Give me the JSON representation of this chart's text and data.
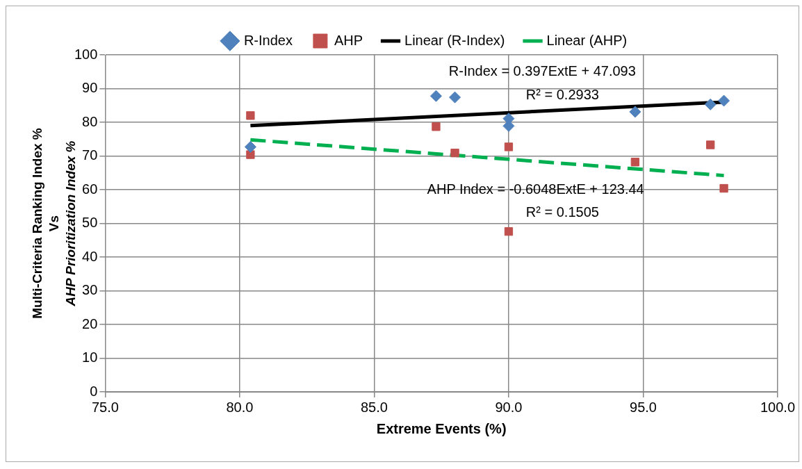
{
  "chart_data": {
    "type": "scatter",
    "xlabel": "Extreme Events (%)",
    "ylabel": "Multi-Criteria Ranking Index %\nVs\nAHP Prioritization Index %",
    "xlim": [
      75,
      100
    ],
    "xticks": [
      {
        "value": 75,
        "label": "75.0"
      },
      {
        "value": 80,
        "label": "80.0"
      },
      {
        "value": 85,
        "label": "85.0"
      },
      {
        "value": 90,
        "label": "90.0"
      },
      {
        "value": 95,
        "label": "95.0"
      },
      {
        "value": 100,
        "label": "100.0"
      }
    ],
    "ylim": [
      0,
      100
    ],
    "yticks": [
      0,
      10,
      20,
      30,
      40,
      50,
      60,
      70,
      80,
      90,
      100
    ],
    "grid": true,
    "legend": "top",
    "annotations": [
      "R-Index = 0.397ExtE + 47.093",
      "R² = 0.2933",
      "AHP Index = -0.6048ExtE + 123.44",
      "R² = 0.1505"
    ],
    "series": [
      {
        "name": "R-Index",
        "marker": "diamond",
        "color": "#4f81bd",
        "x": [
          80.4,
          87.3,
          88.0,
          90.0,
          90.0,
          94.7,
          97.5,
          98.0
        ],
        "values": [
          72.7,
          87.8,
          87.4,
          81.1,
          78.9,
          83.1,
          85.3,
          86.4
        ]
      },
      {
        "name": "AHP",
        "marker": "square",
        "color": "#c0504d",
        "x": [
          80.4,
          80.4,
          87.3,
          88.0,
          90.0,
          90.0,
          94.7,
          97.5,
          98.0
        ],
        "values": [
          82.0,
          70.4,
          78.7,
          70.9,
          72.7,
          47.6,
          68.2,
          73.3,
          60.4
        ]
      },
      {
        "name": "Linear (R-Index)",
        "type": "line",
        "marker": "none",
        "line_style": "solid",
        "color": "#000000",
        "x": [
          80.4,
          98.0
        ],
        "values": [
          79.0,
          86.0
        ]
      },
      {
        "name": "Linear (AHP)",
        "type": "line",
        "marker": "none",
        "line_style": "dashed",
        "color": "#00b050",
        "x": [
          80.4,
          98.0
        ],
        "values": [
          74.8,
          64.2
        ]
      }
    ]
  }
}
